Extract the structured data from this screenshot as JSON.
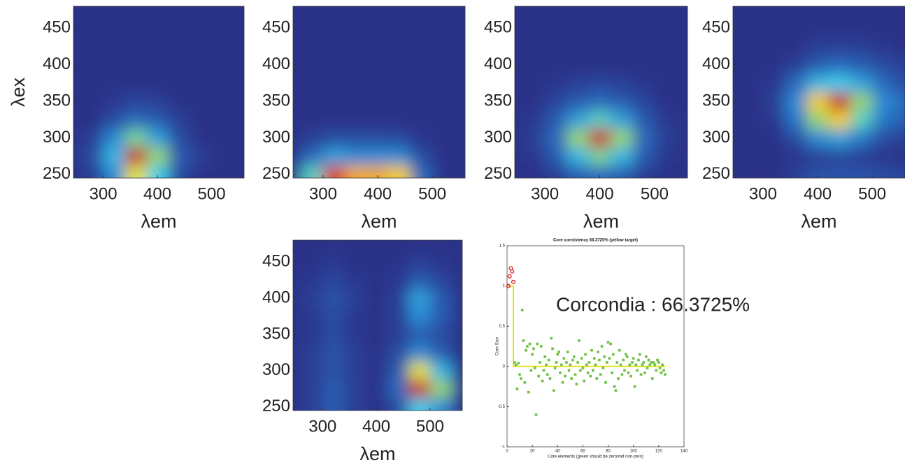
{
  "chart_data": [
    {
      "type": "heatmap",
      "xlabel": "λem",
      "ylabel": "λex",
      "xlim": [
        245,
        560
      ],
      "ylim": [
        245,
        480
      ],
      "xticks": [
        300,
        400,
        500
      ],
      "yticks": [
        250,
        300,
        350,
        400,
        450
      ],
      "x": [
        240,
        280,
        320,
        360,
        400,
        440,
        480,
        520,
        560
      ],
      "y": [
        250,
        275,
        300,
        325,
        350,
        375,
        400,
        425,
        450,
        475
      ],
      "z": [
        [
          0,
          0.05,
          0.3,
          0.7,
          0.45,
          0.1,
          0,
          0,
          0
        ],
        [
          0,
          0.1,
          0.4,
          1.0,
          0.6,
          0.15,
          0.05,
          0,
          0
        ],
        [
          0,
          0.05,
          0.3,
          0.55,
          0.35,
          0.1,
          0,
          0,
          0
        ],
        [
          0,
          0,
          0.1,
          0.2,
          0.15,
          0.05,
          0,
          0,
          0
        ],
        [
          0,
          0,
          0.03,
          0.07,
          0.05,
          0,
          0,
          0,
          0
        ],
        [
          0,
          0,
          0,
          0,
          0,
          0,
          0,
          0,
          0
        ],
        [
          0,
          0,
          0,
          0,
          0,
          0,
          0,
          0,
          0
        ],
        [
          0,
          0,
          0,
          0,
          0,
          0,
          0,
          0,
          0
        ],
        [
          0,
          0,
          0,
          0,
          0,
          0,
          0,
          0,
          0
        ],
        [
          0,
          0,
          0,
          0,
          0,
          0,
          0,
          0,
          0
        ]
      ]
    },
    {
      "type": "heatmap",
      "xlabel": "λem",
      "xlim": [
        245,
        560
      ],
      "ylim": [
        245,
        480
      ],
      "xticks": [
        300,
        400,
        500
      ],
      "yticks": [
        250,
        300,
        350,
        400,
        450
      ],
      "x": [
        240,
        280,
        320,
        360,
        400,
        440,
        480,
        520,
        560
      ],
      "y": [
        250,
        275,
        300,
        325,
        350,
        375,
        400,
        425,
        450,
        475
      ],
      "z": [
        [
          0.05,
          0.5,
          0.95,
          0.8,
          0.8,
          0.75,
          0.2,
          0,
          0
        ],
        [
          0,
          0.2,
          0.35,
          0.3,
          0.3,
          0.3,
          0.1,
          0,
          0
        ],
        [
          0,
          0.05,
          0.1,
          0.1,
          0.1,
          0.08,
          0.02,
          0,
          0
        ],
        [
          0,
          0,
          0,
          0,
          0,
          0,
          0,
          0,
          0
        ],
        [
          0,
          0,
          0,
          0,
          0,
          0,
          0,
          0,
          0
        ],
        [
          0,
          0,
          0,
          0,
          0,
          0,
          0,
          0,
          0
        ],
        [
          0,
          0,
          0,
          0,
          0,
          0,
          0,
          0,
          0
        ],
        [
          0,
          0,
          0,
          0,
          0,
          0,
          0,
          0,
          0
        ],
        [
          0,
          0,
          0,
          0,
          0,
          0,
          0,
          0,
          0
        ],
        [
          0,
          0,
          0,
          0,
          0,
          0,
          0,
          0,
          0
        ]
      ]
    },
    {
      "type": "heatmap",
      "xlabel": "λem",
      "xlim": [
        245,
        560
      ],
      "ylim": [
        245,
        480
      ],
      "xticks": [
        300,
        400,
        500
      ],
      "yticks": [
        250,
        300,
        350,
        400,
        450
      ],
      "x": [
        240,
        280,
        320,
        360,
        400,
        440,
        480,
        520,
        560
      ],
      "y": [
        250,
        275,
        300,
        325,
        350,
        375,
        400,
        425,
        450,
        475
      ],
      "z": [
        [
          0,
          0,
          0.05,
          0.15,
          0.2,
          0.15,
          0.05,
          0,
          0
        ],
        [
          0,
          0.03,
          0.15,
          0.4,
          0.55,
          0.4,
          0.15,
          0.03,
          0
        ],
        [
          0,
          0.05,
          0.2,
          0.6,
          1.0,
          0.6,
          0.2,
          0.05,
          0
        ],
        [
          0,
          0.03,
          0.15,
          0.35,
          0.5,
          0.35,
          0.15,
          0.03,
          0
        ],
        [
          0,
          0,
          0.07,
          0.15,
          0.2,
          0.15,
          0.07,
          0,
          0
        ],
        [
          0,
          0,
          0.02,
          0.05,
          0.08,
          0.05,
          0.02,
          0,
          0
        ],
        [
          0,
          0,
          0,
          0,
          0,
          0,
          0,
          0,
          0
        ],
        [
          0,
          0,
          0,
          0,
          0,
          0,
          0,
          0,
          0
        ],
        [
          0,
          0,
          0,
          0,
          0,
          0,
          0,
          0,
          0
        ],
        [
          0,
          0,
          0,
          0,
          0,
          0,
          0,
          0,
          0
        ]
      ]
    },
    {
      "type": "heatmap",
      "xlabel": "λem",
      "xlim": [
        245,
        560
      ],
      "ylim": [
        245,
        480
      ],
      "xticks": [
        300,
        400,
        500
      ],
      "yticks": [
        250,
        300,
        350,
        400,
        450
      ],
      "x": [
        240,
        280,
        320,
        360,
        400,
        440,
        480,
        520,
        560
      ],
      "y": [
        250,
        275,
        300,
        325,
        350,
        375,
        400,
        425,
        450,
        475
      ],
      "z": [
        [
          0,
          0,
          0,
          0.05,
          0.12,
          0.12,
          0.12,
          0.1,
          0.08
        ],
        [
          0,
          0,
          0,
          0.02,
          0.05,
          0.08,
          0.05,
          0.02,
          0
        ],
        [
          0,
          0,
          0,
          0.1,
          0.3,
          0.35,
          0.25,
          0.1,
          0.05
        ],
        [
          0,
          0,
          0.03,
          0.25,
          0.6,
          0.75,
          0.5,
          0.25,
          0.15
        ],
        [
          0,
          0,
          0.05,
          0.3,
          0.75,
          1.0,
          0.6,
          0.3,
          0.2
        ],
        [
          0,
          0,
          0.03,
          0.2,
          0.4,
          0.45,
          0.35,
          0.2,
          0.1
        ],
        [
          0,
          0,
          0,
          0.05,
          0.15,
          0.2,
          0.15,
          0.1,
          0.05
        ],
        [
          0,
          0,
          0,
          0,
          0.05,
          0.05,
          0.05,
          0.02,
          0
        ],
        [
          0,
          0,
          0,
          0,
          0,
          0,
          0,
          0,
          0
        ],
        [
          0,
          0,
          0,
          0,
          0,
          0,
          0,
          0,
          0
        ]
      ]
    },
    {
      "type": "heatmap",
      "xlabel": "λem",
      "xlim": [
        245,
        560
      ],
      "ylim": [
        245,
        480
      ],
      "xticks": [
        300,
        400,
        500
      ],
      "yticks": [
        250,
        300,
        350,
        400,
        450
      ],
      "x": [
        240,
        280,
        320,
        360,
        400,
        440,
        480,
        520,
        560
      ],
      "y": [
        250,
        275,
        300,
        325,
        350,
        375,
        400,
        425,
        450,
        475
      ],
      "z": [
        [
          0,
          0.05,
          0.15,
          0.05,
          0,
          0.1,
          0.45,
          0.3,
          0
        ],
        [
          0,
          0.05,
          0.15,
          0.05,
          0,
          0.2,
          1.0,
          0.6,
          0.05
        ],
        [
          0,
          0.05,
          0.12,
          0.05,
          0,
          0.15,
          0.7,
          0.4,
          0.03
        ],
        [
          0,
          0.05,
          0.12,
          0.05,
          0,
          0.1,
          0.3,
          0.15,
          0
        ],
        [
          0,
          0.03,
          0.1,
          0.03,
          0,
          0.05,
          0.15,
          0.1,
          0
        ],
        [
          0,
          0.03,
          0.1,
          0.03,
          0,
          0.05,
          0.3,
          0.15,
          0
        ],
        [
          0,
          0.05,
          0.12,
          0.05,
          0,
          0.05,
          0.35,
          0.15,
          0
        ],
        [
          0,
          0.03,
          0.08,
          0.03,
          0,
          0.03,
          0.15,
          0.08,
          0
        ],
        [
          0,
          0,
          0.03,
          0,
          0,
          0,
          0.05,
          0.02,
          0
        ],
        [
          0,
          0,
          0,
          0,
          0,
          0,
          0,
          0,
          0
        ]
      ]
    },
    {
      "type": "scatter",
      "title": "Core consistency 66.3725% (yellow target)",
      "xlabel": "Core elements (green should be zero/red non-zero)",
      "ylabel": "Core Size",
      "annotation": "Corcondia : 66.3725%",
      "xlim": [
        0,
        140
      ],
      "ylim": [
        -1,
        1.5
      ],
      "xticks": [
        0,
        20,
        40,
        60,
        80,
        100,
        120,
        140
      ],
      "yticks": [
        -1,
        -0.5,
        0,
        0.5,
        1,
        1.5
      ],
      "series": [
        {
          "color": "#e6e21a",
          "style": "line",
          "x": [
            1,
            5,
            5,
            125
          ],
          "values": [
            1,
            1,
            0,
            0
          ]
        },
        {
          "color": "#d42020",
          "marker": "circle",
          "x": [
            1,
            2,
            3,
            4,
            5
          ],
          "values": [
            1,
            1.12,
            1.22,
            1.18,
            1.05
          ]
        },
        {
          "color": "#6cc040",
          "marker": "square",
          "x": [
            6,
            7,
            8,
            9,
            10,
            11,
            12,
            13,
            14,
            15,
            16,
            17,
            18,
            19,
            20,
            21,
            22,
            23,
            24,
            25,
            26,
            27,
            28,
            29,
            30,
            31,
            32,
            33,
            34,
            35,
            36,
            37,
            38,
            39,
            40,
            41,
            42,
            43,
            44,
            45,
            46,
            47,
            48,
            49,
            50,
            51,
            52,
            53,
            54,
            55,
            56,
            57,
            58,
            59,
            60,
            61,
            62,
            63,
            64,
            65,
            66,
            67,
            68,
            69,
            70,
            71,
            72,
            73,
            74,
            75,
            76,
            77,
            78,
            79,
            80,
            81,
            82,
            83,
            84,
            85,
            86,
            87,
            88,
            89,
            90,
            91,
            92,
            93,
            94,
            95,
            96,
            97,
            98,
            99,
            100,
            101,
            102,
            103,
            104,
            105,
            106,
            107,
            108,
            109,
            110,
            111,
            112,
            113,
            114,
            115,
            116,
            117,
            118,
            119,
            120,
            121,
            122,
            123,
            124,
            125
          ],
          "values": [
            0.05,
            0.02,
            -0.28,
            0.04,
            -0.1,
            -0.15,
            0.7,
            0.32,
            -0.2,
            0.2,
            0.25,
            -0.32,
            0.28,
            -0.05,
            0.15,
            0.22,
            -0.02,
            -0.6,
            0.28,
            -0.12,
            0.05,
            0.25,
            -0.18,
            -0.05,
            0.12,
            0.02,
            -0.1,
            0.08,
            -0.15,
            0.35,
            0.22,
            -0.3,
            -0.02,
            0.05,
            0.15,
            0.18,
            -0.08,
            0.02,
            -0.2,
            0.1,
            -0.12,
            0.05,
            0.18,
            -0.05,
            0.02,
            -0.15,
            0.08,
            0.12,
            -0.1,
            -0.22,
            0.05,
            0.32,
            -0.05,
            0.1,
            -0.02,
            -0.18,
            0.15,
            0.02,
            -0.08,
            0.05,
            -0.12,
            0.2,
            -0.05,
            0.1,
            0.02,
            -0.15,
            0.18,
            0.08,
            -0.1,
            0.25,
            -0.02,
            0.12,
            -0.2,
            0.05,
            0.3,
            0.1,
            0.28,
            -0.08,
            0.15,
            -0.25,
            -0.3,
            0.05,
            -0.15,
            0.2,
            0.02,
            -0.1,
            0.08,
            -0.05,
            0.15,
            0.12,
            -0.08,
            0.02,
            -0.12,
            0.05,
            0.1,
            -0.25,
            0.02,
            -0.05,
            0.08,
            0.15,
            -0.1,
            0.02,
            0.05,
            -0.08,
            0.12,
            -0.02,
            0.08,
            0.02,
            0.05,
            -0.15,
            0.05,
            0.02,
            -0.05,
            0.08,
            0.05,
            -0.02,
            -0.08,
            0.02,
            -0.05,
            -0.1
          ]
        }
      ]
    }
  ]
}
